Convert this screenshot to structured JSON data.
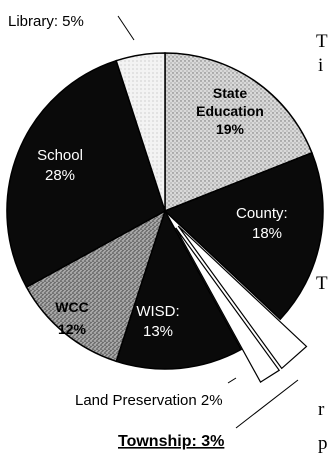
{
  "chart_data": {
    "type": "pie",
    "title": "",
    "slices": [
      {
        "label": "State Education",
        "value": 19,
        "display": "19%",
        "color": "#cfcfcf",
        "style": "stipple-light"
      },
      {
        "label": "County:",
        "value": 18,
        "display": "18%",
        "color": "#0a0a0a",
        "style": "solid"
      },
      {
        "label": "Township:",
        "value": 3,
        "display": "3%",
        "color": "#ffffff",
        "style": "exploded-outline"
      },
      {
        "label": "Land Preservation",
        "value": 2,
        "display": "2%",
        "color": "#ffffff",
        "style": "exploded-outline"
      },
      {
        "label": "WISD:",
        "value": 13,
        "display": "13%",
        "color": "#0a0a0a",
        "style": "solid"
      },
      {
        "label": "WCC",
        "value": 12,
        "display": "12%",
        "color": "#9a9a9a",
        "style": "stipple-dark"
      },
      {
        "label": "School",
        "value": 28,
        "display": "28%",
        "color": "#0a0a0a",
        "style": "solid"
      },
      {
        "label": "Library:",
        "value": 5,
        "display": "5%",
        "color": "#f2f2f2",
        "style": "stipple-light"
      }
    ],
    "labels": {
      "library": "Library: 5%",
      "state_name": "State",
      "state_name2": "Education",
      "state_pct": "19%",
      "county_name": "County:",
      "county_pct": "18%",
      "school_name": "School",
      "school_pct": "28%",
      "wcc_name": "WCC",
      "wcc_pct": "12%",
      "wisd_name": "WISD:",
      "wisd_pct": "13%",
      "land": "Land Preservation 2%",
      "township": "Township: 3%"
    }
  },
  "page_fragments": {
    "f1": "T",
    "f2": "i",
    "f3": "T",
    "f4": "r",
    "f5": "p"
  }
}
